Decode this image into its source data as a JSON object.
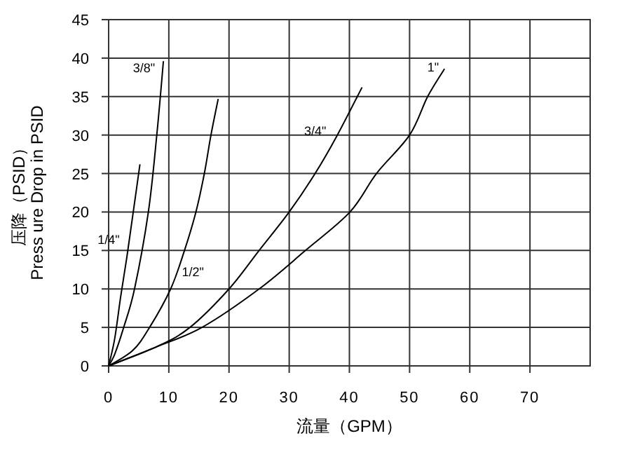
{
  "chart_data": {
    "type": "line",
    "xlabel": "流量（GPM）",
    "ylabel": "压降（PSID）\nPress ure Drop in PSID",
    "xlim": [
      0,
      80
    ],
    "ylim": [
      0,
      45
    ],
    "xticks": [
      0,
      10,
      20,
      30,
      40,
      50,
      60,
      70
    ],
    "yticks": [
      0,
      5,
      10,
      15,
      20,
      25,
      30,
      35,
      40,
      45
    ],
    "grid": true,
    "marker": "none",
    "line_style": "solid",
    "series": [
      {
        "name": "1/4\"",
        "color": "#000000",
        "x": [
          0,
          1,
          2,
          3,
          4,
          5.2
        ],
        "values": [
          0,
          3.5,
          9,
          14,
          19.5,
          26.2
        ]
      },
      {
        "name": "3/8\"",
        "color": "#000000",
        "x": [
          0,
          1,
          2.5,
          4.3,
          6.6,
          8,
          9.1
        ],
        "values": [
          0,
          1.5,
          5,
          10,
          20,
          30,
          39.6
        ]
      },
      {
        "name": "1/2\"",
        "color": "#000000",
        "x": [
          0,
          4,
          6.8,
          10.3,
          12.6,
          14.5,
          15.9,
          17,
          18.2
        ],
        "values": [
          0,
          2,
          5,
          10,
          15,
          20,
          25,
          30,
          34.7
        ]
      },
      {
        "name": "3/4\"",
        "color": "#000000",
        "x": [
          0,
          8,
          13.5,
          20,
          25,
          30,
          34.3,
          38,
          42.1
        ],
        "values": [
          0,
          2.5,
          5,
          10,
          15,
          20,
          25,
          30,
          36.2
        ]
      },
      {
        "name": "1\"",
        "color": "#000000",
        "x": [
          0,
          8,
          15.5,
          25,
          32.7,
          40.1,
          44.5,
          50,
          53,
          55.8
        ],
        "values": [
          0,
          2.5,
          5,
          10,
          15,
          20,
          25,
          30,
          35,
          38.6
        ]
      }
    ]
  }
}
